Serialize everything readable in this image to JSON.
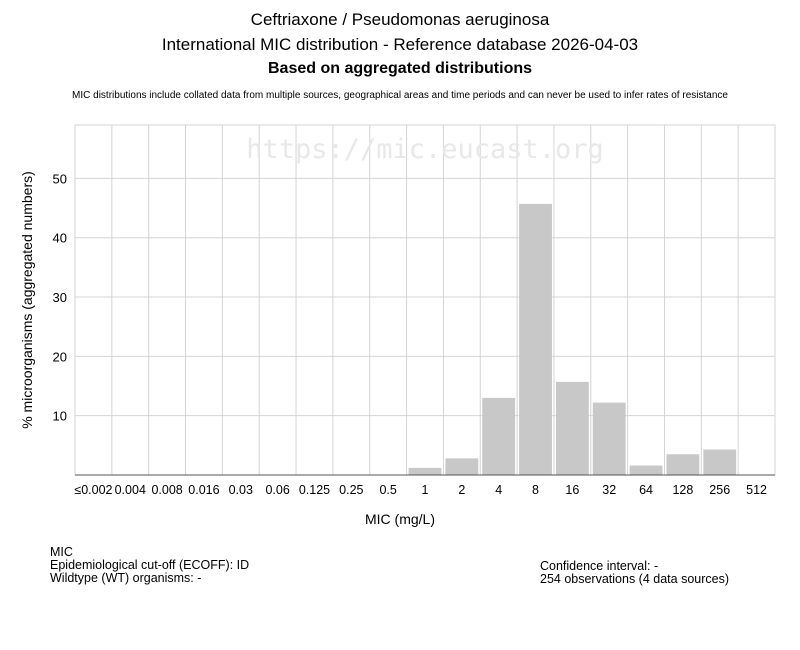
{
  "header": {
    "title": "Ceftriaxone / Pseudomonas aeruginosa",
    "subtitle": "International MIC distribution - Reference database 2026-04-03",
    "basis": "Based on aggregated distributions",
    "disclaimer": "MIC distributions include collated data from multiple sources, geographical areas and time periods and can never be used to infer rates of resistance"
  },
  "watermark": "https://mic.eucast.org",
  "chart_data": {
    "type": "bar",
    "xlabel": "MIC (mg/L)",
    "ylabel": "% microorganisms (aggregated numbers)",
    "categories": [
      "≤0.002",
      "0.004",
      "0.008",
      "0.016",
      "0.03",
      "0.06",
      "0.125",
      "0.25",
      "0.5",
      "1",
      "2",
      "4",
      "8",
      "16",
      "32",
      "64",
      "128",
      "256",
      "512"
    ],
    "values": [
      0,
      0,
      0,
      0,
      0,
      0,
      0,
      0,
      0,
      1.2,
      2.8,
      13.0,
      45.7,
      15.7,
      12.2,
      1.6,
      3.5,
      4.3,
      0
    ],
    "yticks": [
      10,
      20,
      30,
      40,
      50
    ],
    "ylim": [
      0,
      59
    ],
    "grid": true,
    "bar_color": "#c8c8c8"
  },
  "info": {
    "left": [
      "MIC",
      "Epidemiological cut-off (ECOFF): ID",
      "Wildtype (WT) organisms:  -"
    ],
    "right": [
      "Confidence interval: -",
      "254 observations (4 data sources)"
    ]
  }
}
